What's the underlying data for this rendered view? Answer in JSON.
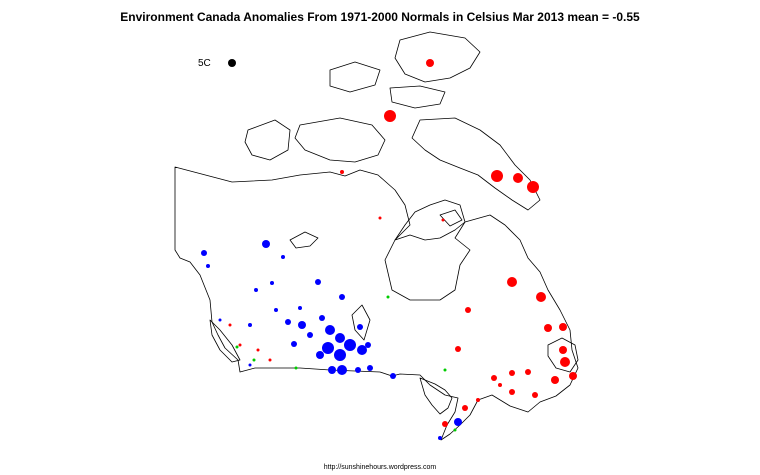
{
  "title": "Environment Canada Anomalies From 1971-2000 Normals in Celsius Mar 2013  mean = -0.55",
  "legend": {
    "label": "5C"
  },
  "credit": "http://sunshinehours.wordpress.com",
  "colors": {
    "positive": "#ff0000",
    "negative": "#0000ff",
    "neutral": "#00cc00",
    "outline": "#000000"
  }
}
